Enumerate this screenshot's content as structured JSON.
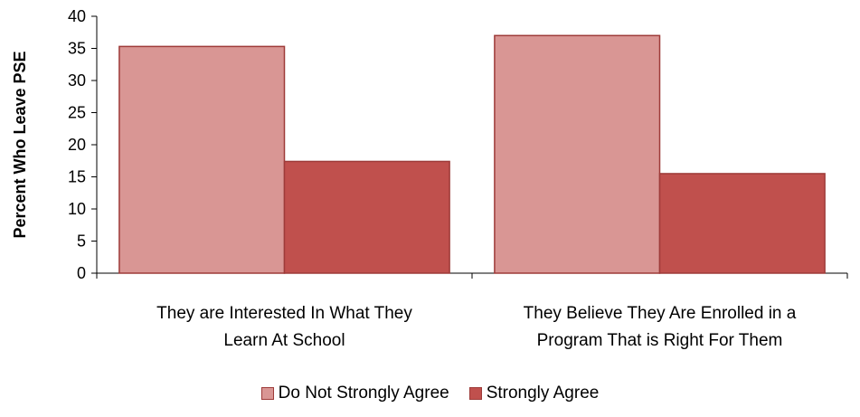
{
  "chart_data": {
    "type": "bar",
    "ylabel": "Percent Who Leave PSE",
    "xlabel": "",
    "ylim": [
      0,
      40
    ],
    "yticks": [
      0,
      5,
      10,
      15,
      20,
      25,
      30,
      35,
      40
    ],
    "categories": [
      [
        "They are Interested In What They",
        "Learn At School"
      ],
      [
        "They Believe They Are Enrolled in a",
        "Program That is Right For Them"
      ]
    ],
    "series": [
      {
        "name": "Do Not Strongly Agree",
        "color": "#d99694",
        "values": [
          35.3,
          37.0
        ]
      },
      {
        "name": "Strongly Agree",
        "color": "#c0504d",
        "values": [
          17.4,
          15.5
        ]
      }
    ],
    "legend_position": "bottom",
    "grid": false
  }
}
